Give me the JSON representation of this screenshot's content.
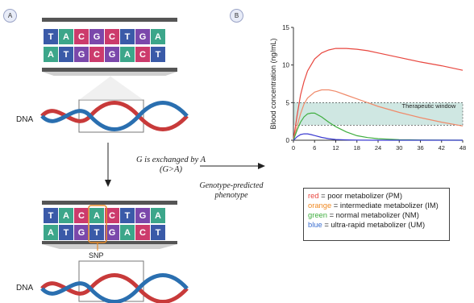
{
  "panels": {
    "a_label": "A",
    "b_label": "B"
  },
  "colors": {
    "A": "#3ca68a",
    "T": "#3a5aa8",
    "C": "#cc3b6c",
    "G": "#7b48ab"
  },
  "top_strand": {
    "upper": [
      "T",
      "A",
      "C",
      "G",
      "C",
      "T",
      "G",
      "A"
    ],
    "lower": [
      "A",
      "T",
      "G",
      "C",
      "G",
      "A",
      "C",
      "T"
    ]
  },
  "bottom_strand": {
    "upper": [
      "T",
      "A",
      "C",
      "A",
      "C",
      "T",
      "G",
      "A"
    ],
    "lower": [
      "A",
      "T",
      "G",
      "T",
      "G",
      "A",
      "C",
      "T"
    ],
    "highlight_index": 3
  },
  "dna_label_top": "DNA",
  "dna_label_bottom": "DNA",
  "snp_label": "SNP",
  "exchange_text_line1": "G is exchanged by A",
  "exchange_text_line2": "(G>A)",
  "phenotype_text_line1": "Genotype-predicted",
  "phenotype_text_line2": "phenotype",
  "legend": [
    {
      "color_word": "red",
      "color": "#e8473f",
      "rest": " = poor metabolizer (PM)"
    },
    {
      "color_word": "orange",
      "color": "#f08a24",
      "rest": " = intermediate metabolizer (IM)"
    },
    {
      "color_word": "green",
      "color": "#3fae3f",
      "rest": " = normal metabolizer (NM)"
    },
    {
      "color_word": "blue",
      "color": "#3b6fd0",
      "rest": " = ultra-rapid metabolizer (UM)"
    }
  ],
  "chart_data": {
    "type": "line",
    "xlabel": "Time (h)",
    "ylabel": "Blood concentration (ng/mL)",
    "xlim": [
      0,
      48
    ],
    "ylim": [
      0,
      15
    ],
    "xticks": [
      0,
      6,
      12,
      18,
      24,
      30,
      36,
      42,
      48
    ],
    "yticks": [
      0,
      5,
      10,
      15
    ],
    "band": {
      "label": "Therapeutic window",
      "low": 2,
      "high": 5,
      "color": "#cfe7e2"
    },
    "series": [
      {
        "color": "#e8473f",
        "x": [
          0,
          1,
          2,
          3,
          4,
          6,
          8,
          10,
          12,
          15,
          18,
          21,
          24,
          30,
          36,
          42,
          48
        ],
        "y": [
          0,
          3.2,
          6.0,
          7.8,
          9.2,
          10.8,
          11.6,
          12.0,
          12.2,
          12.2,
          12.1,
          11.9,
          11.6,
          11.0,
          10.4,
          9.9,
          9.3
        ]
      },
      {
        "color": "#f08a6a",
        "x": [
          0,
          1,
          2,
          3,
          4,
          6,
          8,
          10,
          12,
          15,
          18,
          21,
          24,
          30,
          36,
          42,
          48
        ],
        "y": [
          0,
          1.8,
          3.5,
          4.8,
          5.6,
          6.4,
          6.7,
          6.7,
          6.5,
          6.0,
          5.5,
          5.0,
          4.5,
          3.7,
          3.0,
          2.4,
          1.9
        ]
      },
      {
        "color": "#3fae3f",
        "x": [
          0,
          1,
          2,
          3,
          4,
          5,
          6,
          8,
          10,
          12,
          15,
          18,
          21,
          24,
          30,
          36,
          42,
          48
        ],
        "y": [
          0,
          1.3,
          2.4,
          3.1,
          3.5,
          3.6,
          3.6,
          3.1,
          2.4,
          1.8,
          1.1,
          0.6,
          0.35,
          0.2,
          0.08,
          0.03,
          0.01,
          0
        ]
      },
      {
        "color": "#3b3bd0",
        "x": [
          0,
          1,
          2,
          3,
          4,
          5,
          6,
          8,
          10,
          12,
          15,
          18,
          24,
          30,
          36,
          42,
          48
        ],
        "y": [
          0,
          0.45,
          0.75,
          0.85,
          0.85,
          0.75,
          0.62,
          0.38,
          0.2,
          0.1,
          0.04,
          0.01,
          0,
          0,
          0,
          0,
          0
        ]
      }
    ]
  }
}
